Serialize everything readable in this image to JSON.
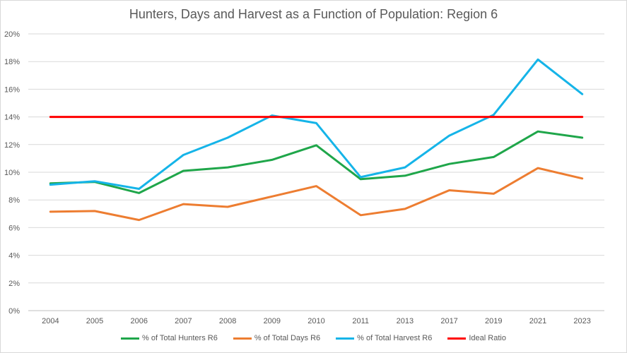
{
  "chart_data": {
    "type": "line",
    "title": "Hunters, Days and Harvest as a Function of Population: Region 6",
    "xlabel": "",
    "ylabel": "",
    "ylim": [
      0,
      20
    ],
    "y_ticks": [
      "0%",
      "2%",
      "4%",
      "6%",
      "8%",
      "10%",
      "12%",
      "14%",
      "16%",
      "18%",
      "20%"
    ],
    "grid": true,
    "legend_position": "bottom",
    "categories": [
      "2004",
      "2005",
      "2006",
      "2007",
      "2008",
      "2009",
      "2010",
      "2011",
      "2013",
      "2017",
      "2019",
      "2021",
      "2023"
    ],
    "series": [
      {
        "name": "% of Total Hunters R6",
        "color": "#1fa64a",
        "values": [
          9.2,
          9.3,
          8.5,
          10.1,
          10.35,
          10.9,
          11.95,
          9.5,
          9.75,
          10.6,
          11.1,
          12.95,
          12.5
        ]
      },
      {
        "name": "% of Total Days R6",
        "color": "#ed7d31",
        "values": [
          7.15,
          7.2,
          6.55,
          7.7,
          7.5,
          8.25,
          9.0,
          6.9,
          7.35,
          8.7,
          8.45,
          10.3,
          9.55
        ]
      },
      {
        "name": "% of Total Harvest R6",
        "color": "#15b4e8",
        "values": [
          9.1,
          9.35,
          8.8,
          11.25,
          12.5,
          14.1,
          13.55,
          9.65,
          10.35,
          12.65,
          14.15,
          18.15,
          15.65
        ]
      },
      {
        "name": "Ideal Ratio",
        "color": "#ff0000",
        "values": [
          14,
          14,
          14,
          14,
          14,
          14,
          14,
          14,
          14,
          14,
          14,
          14,
          14
        ]
      }
    ]
  }
}
